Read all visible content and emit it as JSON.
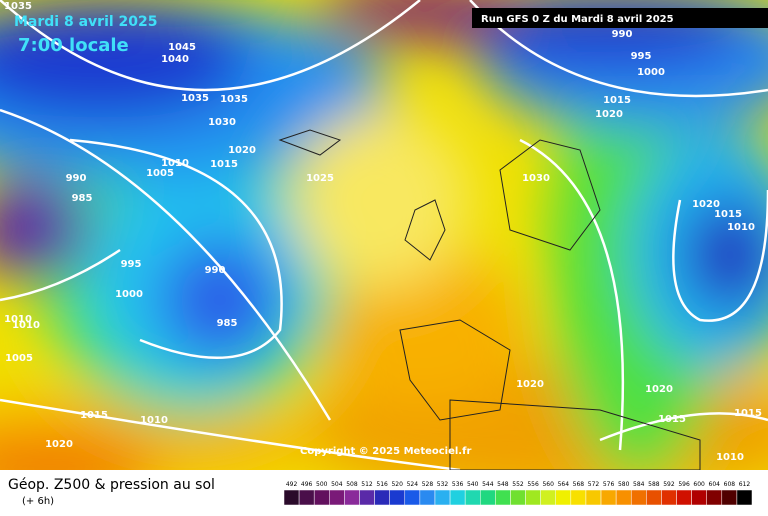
{
  "header": {
    "date": "Mardi 8 avril 2025",
    "time": "7:00 locale",
    "run": "Run GFS 0 Z du Mardi 8 avril 2025"
  },
  "isobar_labels": [
    "1035",
    "1045",
    "1040",
    "990",
    "995",
    "1000",
    "1035",
    "1035",
    "1030",
    "1020",
    "1010",
    "1015",
    "1005",
    "1025",
    "1030",
    "1015",
    "1020",
    "990",
    "985",
    "1020",
    "1015",
    "1010",
    "995",
    "990",
    "1000",
    "985",
    "1010",
    "1010",
    "1005",
    "1020",
    "1020",
    "1015",
    "1010",
    "1015",
    "1015",
    "1020",
    "1010"
  ],
  "copyright": "Copyright © 2025 Meteociel.fr",
  "footer": {
    "title": "Géop. Z500 & pression au sol",
    "step": "(+ 6h)"
  },
  "colorbar": {
    "labels": [
      "492",
      "496",
      "500",
      "504",
      "508",
      "512",
      "516",
      "520",
      "524",
      "528",
      "532",
      "536",
      "540",
      "544",
      "548",
      "552",
      "556",
      "560",
      "564",
      "568",
      "572",
      "576",
      "580",
      "584",
      "588",
      "592",
      "596",
      "600",
      "604",
      "608",
      "612"
    ],
    "colors": [
      "#2a0a2a",
      "#4a0f4a",
      "#62105e",
      "#7a1a78",
      "#8a2a9a",
      "#5a2aa8",
      "#2a2ab8",
      "#1a3ad0",
      "#1a5ae8",
      "#2a8af0",
      "#2ab0f0",
      "#20d0e0",
      "#20d8b0",
      "#20d880",
      "#40e050",
      "#70e030",
      "#a0e820",
      "#d0f020",
      "#f0f000",
      "#f8e000",
      "#f8c800",
      "#f8a800",
      "#f89000",
      "#f07000",
      "#e85000",
      "#e03000",
      "#d01000",
      "#b00000",
      "#800000",
      "#500000",
      "#000000"
    ]
  }
}
